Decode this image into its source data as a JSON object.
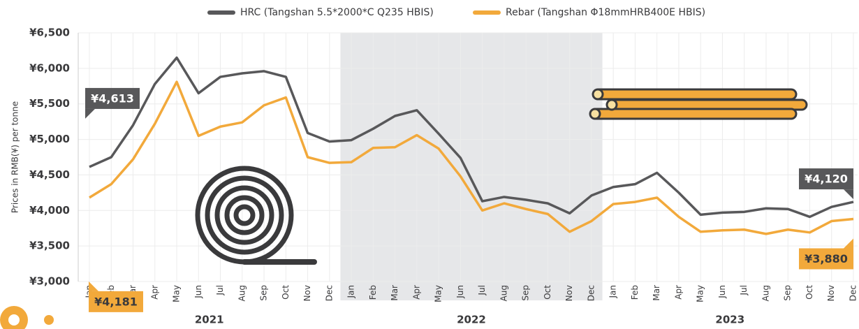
{
  "chart_data": {
    "type": "line",
    "y_axis_label": "Prices in RMB(¥) per tonne",
    "categories": [
      "Jan",
      "Feb",
      "Mar",
      "Apr",
      "May",
      "Jun",
      "Jul",
      "Aug",
      "Sep",
      "Oct",
      "Nov",
      "Dec",
      "Jan",
      "Feb",
      "Mar",
      "Apr",
      "May",
      "Jun",
      "Jul",
      "Aug",
      "Sep",
      "Oct",
      "Nov",
      "Dec",
      "Jan",
      "Feb",
      "Mar",
      "Apr",
      "May",
      "Jun",
      "Jul",
      "Aug",
      "Sep",
      "Oct",
      "Nov",
      "Dec"
    ],
    "periods": [
      {
        "label": "2021",
        "shaded": false
      },
      {
        "label": "2022",
        "shaded": true
      },
      {
        "label": "2023",
        "shaded": false
      }
    ],
    "series": [
      {
        "name": "HRC (Tangshan 5.5*2000*C Q235 HBIS)",
        "color": "#58585a",
        "values": [
          4613,
          4750,
          5200,
          5780,
          6150,
          5650,
          5880,
          5930,
          5960,
          5880,
          5090,
          4970,
          4990,
          5150,
          5330,
          5410,
          5080,
          4740,
          4130,
          4190,
          4150,
          4100,
          3960,
          4210,
          4330,
          4370,
          4530,
          4250,
          3940,
          3970,
          3980,
          4030,
          4020,
          3910,
          4050,
          4120
        ],
        "value_labels": [
          "¥4,613",
          null,
          null,
          null,
          null,
          null,
          null,
          null,
          null,
          null,
          null,
          null,
          null,
          null,
          null,
          null,
          null,
          null,
          null,
          null,
          null,
          null,
          null,
          null,
          null,
          null,
          null,
          null,
          null,
          null,
          null,
          null,
          null,
          null,
          null,
          "¥4,120"
        ]
      },
      {
        "name": "Rebar (Tangshan Φ18mmHRB400E HBIS)",
        "color": "#f2a93b",
        "values": [
          4181,
          4370,
          4720,
          5220,
          5810,
          5050,
          5180,
          5240,
          5480,
          5590,
          4750,
          4670,
          4680,
          4880,
          4890,
          5060,
          4870,
          4480,
          4000,
          4100,
          4020,
          3950,
          3700,
          3850,
          4090,
          4120,
          4180,
          3910,
          3700,
          3720,
          3730,
          3670,
          3730,
          3690,
          3850,
          3880
        ],
        "value_labels": [
          "¥4,181",
          null,
          null,
          null,
          null,
          null,
          null,
          null,
          null,
          null,
          null,
          null,
          null,
          null,
          null,
          null,
          null,
          null,
          null,
          null,
          null,
          null,
          null,
          null,
          null,
          null,
          null,
          null,
          null,
          null,
          null,
          null,
          null,
          null,
          null,
          "¥3,880"
        ]
      }
    ],
    "ylim": [
      3000,
      6500
    ],
    "yticks": [
      {
        "value": 3000,
        "label": "¥3,000"
      },
      {
        "value": 3500,
        "label": "¥3,500"
      },
      {
        "value": 4000,
        "label": "¥4,000"
      },
      {
        "value": 4500,
        "label": "¥4,500"
      },
      {
        "value": 5000,
        "label": "¥5,000"
      },
      {
        "value": 5500,
        "label": "¥5,500"
      },
      {
        "value": 6000,
        "label": "¥6,000"
      },
      {
        "value": 6500,
        "label": "¥6,500"
      }
    ],
    "grid": true
  }
}
